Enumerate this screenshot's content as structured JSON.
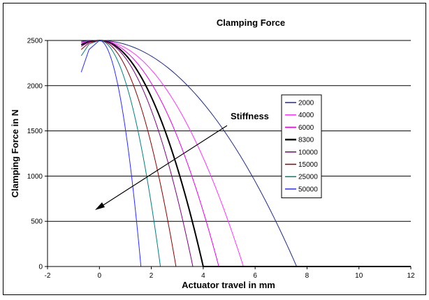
{
  "chart_data": {
    "type": "line",
    "title": "Clamping Force",
    "xlabel": "Actuator travel in mm",
    "ylabel": "Clamping Force in N",
    "xlim": [
      -2,
      12
    ],
    "ylim": [
      0,
      2500
    ],
    "xticks": [
      -2,
      0,
      2,
      4,
      6,
      8,
      10,
      12
    ],
    "yticks": [
      0,
      500,
      1000,
      1500,
      2000,
      2500
    ],
    "grid": "horizontal",
    "legend_position": "right",
    "annotation": "Stiffness",
    "series": [
      {
        "name": "2000",
        "color": "#1f2a8a",
        "width": 1,
        "x0": 7.6,
        "pre": [
          [
            -0.7,
            2490
          ],
          [
            -0.4,
            2496
          ]
        ]
      },
      {
        "name": "4000",
        "color": "#ff33ff",
        "width": 1,
        "x0": 5.55,
        "pre": [
          [
            -0.7,
            2482
          ],
          [
            -0.4,
            2494
          ]
        ]
      },
      {
        "name": "6000",
        "color": "#e600e6",
        "width": 1,
        "x0": 4.6,
        "pre": [
          [
            -0.7,
            2470
          ],
          [
            -0.4,
            2492
          ]
        ]
      },
      {
        "name": "8300",
        "color": "#000000",
        "width": 2,
        "x0": 4.0,
        "pre": [
          [
            -0.7,
            2452
          ],
          [
            -0.4,
            2488
          ]
        ]
      },
      {
        "name": "10000",
        "color": "#800080",
        "width": 1,
        "x0": 3.6,
        "pre": [
          [
            -0.7,
            2435
          ],
          [
            -0.4,
            2484
          ]
        ]
      },
      {
        "name": "15000",
        "color": "#8b0000",
        "width": 1,
        "x0": 2.95,
        "pre": [
          [
            -0.7,
            2400
          ],
          [
            -0.4,
            2475
          ]
        ]
      },
      {
        "name": "25000",
        "color": "#008080",
        "width": 1,
        "x0": 2.35,
        "pre": [
          [
            -0.7,
            2330
          ],
          [
            -0.4,
            2460
          ]
        ]
      },
      {
        "name": "50000",
        "color": "#2b2bff",
        "width": 1,
        "x0": 1.6,
        "pre": [
          [
            -0.7,
            2150
          ],
          [
            -0.4,
            2400
          ]
        ]
      }
    ],
    "y_peak": 2500,
    "x_end": 12
  }
}
